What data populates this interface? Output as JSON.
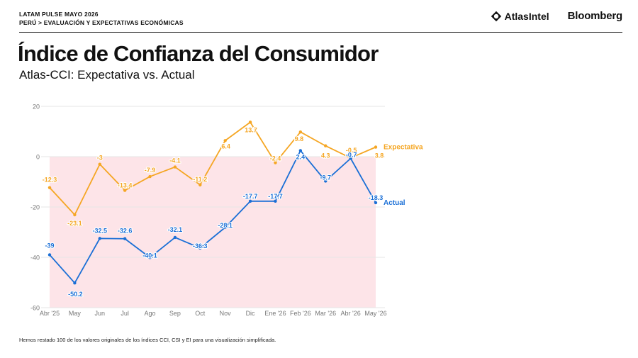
{
  "header": {
    "kicker_line1": "LATAM PULSE MAYO 2026",
    "kicker_line2": "PERÚ > EVALUACIÓN Y EXPECTATIVAS ECONÓMICAS",
    "logo_atlas": "AtlasIntel",
    "logo_bloomberg": "Bloomberg"
  },
  "title": "Índice de Confianza del Consumidor",
  "subtitle": "Atlas-CCI: Expectativa vs. Actual",
  "footnote": "Hemos restado 100 de los valores originales de los índices CCI, CSI y EI para una visualización simplificada.",
  "colors": {
    "expectativa": "#f5a623",
    "actual": "#1a6fd6",
    "negative_band": "#fde4e8",
    "grid": "#e6e6e6",
    "tick": "#777777"
  },
  "chart_data": {
    "type": "line",
    "categories": [
      "Abr '25",
      "May",
      "Jun",
      "Jul",
      "Ago",
      "Sep",
      "Oct",
      "Nov",
      "Dic",
      "Ene '26",
      "Feb '26",
      "Mar '26",
      "Abr '26",
      "May '26"
    ],
    "series": [
      {
        "name": "Expectativa",
        "values": [
          -12.3,
          -23.1,
          -3,
          -13.4,
          -7.9,
          -4.1,
          -11.2,
          6.4,
          13.7,
          -2.4,
          9.8,
          4.3,
          -0.5,
          3.8
        ],
        "labels": [
          "-12.3",
          "-23.1",
          "-3",
          "-13.4",
          "-7.9",
          "-4.1",
          "-11.2",
          "6.4",
          "13.7",
          "-2.4",
          "9.8",
          "4.3",
          "-0.5",
          "3.8"
        ]
      },
      {
        "name": "Actual",
        "values": [
          -39,
          -50.2,
          -32.5,
          -32.6,
          -40.1,
          -32.1,
          -36.3,
          -28.1,
          -17.7,
          -17.7,
          2.4,
          -9.7,
          -0.7,
          -18.3
        ],
        "labels": [
          "-39",
          "-50.2",
          "-32.5",
          "-32.6",
          "-40.1",
          "-32.1",
          "-36.3",
          "-28.1",
          "-17.7",
          "-17.7",
          "2.4",
          "-9.7",
          "-0.7",
          "-18.3"
        ]
      }
    ],
    "y_ticks": [
      "20",
      "0",
      "-20",
      "-40",
      "-60"
    ],
    "ylim": [
      -60,
      20
    ],
    "negative_region_shaded": true,
    "grid": true,
    "legend": "end-of-line labels"
  }
}
